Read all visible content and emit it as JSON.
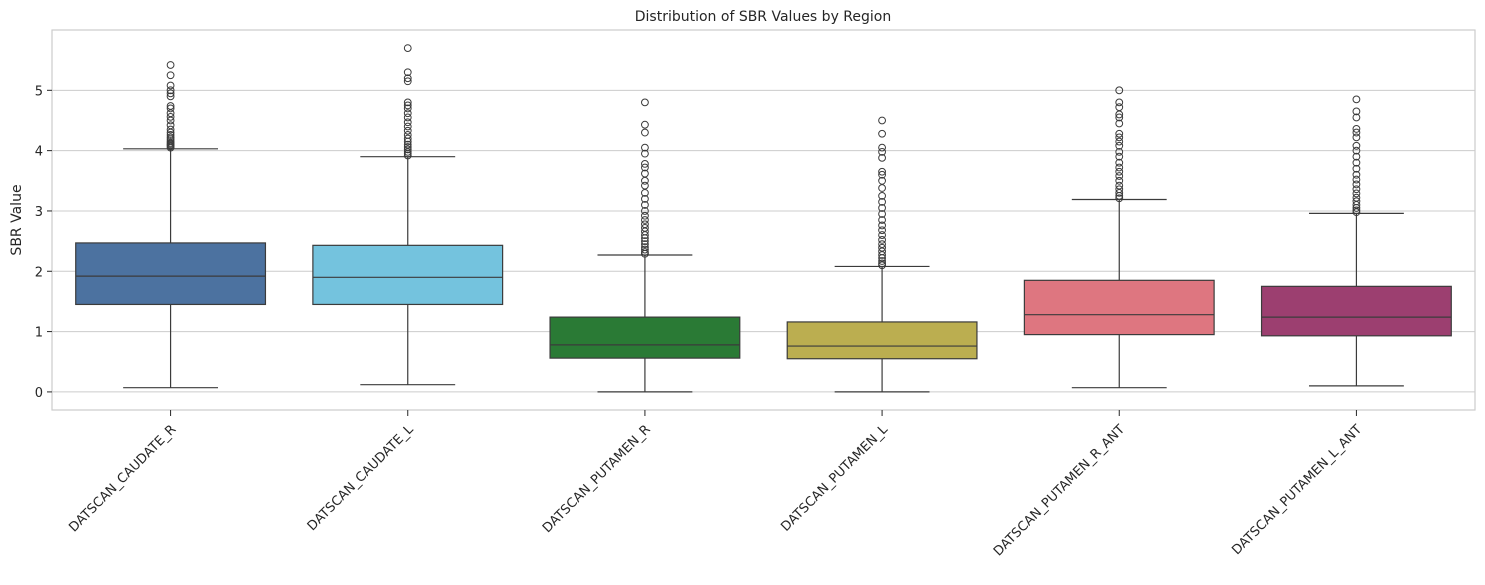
{
  "chart_data": {
    "type": "box",
    "title": "Distribution of SBR Values by Region",
    "xlabel": "",
    "ylabel": "SBR Value",
    "ylim": [
      -0.3,
      6.0
    ],
    "yticks": [
      0,
      1,
      2,
      3,
      4,
      5
    ],
    "ytick_labels": [
      "0",
      "1",
      "2",
      "3",
      "4",
      "5"
    ],
    "grid": "horizontal",
    "categories": [
      "DATSCAN_CAUDATE_R",
      "DATSCAN_CAUDATE_L",
      "DATSCAN_PUTAMEN_R",
      "DATSCAN_PUTAMEN_L",
      "DATSCAN_PUTAMEN_R_ANT",
      "DATSCAN_PUTAMEN_L_ANT"
    ],
    "boxes": [
      {
        "whislo": 0.07,
        "q1": 1.45,
        "med": 1.92,
        "q3": 2.47,
        "whishi": 4.03,
        "color": "#4C72A0",
        "fliers": [
          4.05,
          4.07,
          4.09,
          4.11,
          4.13,
          4.16,
          4.19,
          4.22,
          4.26,
          4.3,
          4.35,
          4.42,
          4.5,
          4.56,
          4.62,
          4.7,
          4.74,
          4.9,
          4.95,
          5.0,
          5.08,
          5.25,
          5.42
        ]
      },
      {
        "whislo": 0.12,
        "q1": 1.45,
        "med": 1.9,
        "q3": 2.43,
        "whishi": 3.9,
        "color": "#74C3DE",
        "fliers": [
          3.92,
          3.95,
          3.98,
          4.02,
          4.06,
          4.1,
          4.15,
          4.2,
          4.26,
          4.33,
          4.4,
          4.47,
          4.55,
          4.62,
          4.7,
          4.75,
          4.8,
          5.15,
          5.2,
          5.3,
          5.7
        ]
      },
      {
        "whislo": 0.0,
        "q1": 0.56,
        "med": 0.78,
        "q3": 1.24,
        "whishi": 2.27,
        "color": "#2A7A35",
        "fliers": [
          2.29,
          2.32,
          2.36,
          2.4,
          2.45,
          2.5,
          2.55,
          2.6,
          2.66,
          2.72,
          2.78,
          2.85,
          2.92,
          3.0,
          3.1,
          3.2,
          3.3,
          3.42,
          3.5,
          3.62,
          3.72,
          3.78,
          3.95,
          4.05,
          4.3,
          4.43,
          4.8
        ]
      },
      {
        "whislo": 0.0,
        "q1": 0.55,
        "med": 0.76,
        "q3": 1.16,
        "whishi": 2.08,
        "color": "#BBAE50",
        "fliers": [
          2.1,
          2.13,
          2.17,
          2.22,
          2.27,
          2.33,
          2.39,
          2.45,
          2.52,
          2.6,
          2.68,
          2.76,
          2.85,
          2.95,
          3.05,
          3.15,
          3.25,
          3.38,
          3.5,
          3.6,
          3.65,
          3.88,
          3.98,
          4.05,
          4.28,
          4.5
        ]
      },
      {
        "whislo": 0.07,
        "q1": 0.95,
        "med": 1.28,
        "q3": 1.85,
        "whishi": 3.19,
        "color": "#DE7680",
        "fliers": [
          3.21,
          3.25,
          3.3,
          3.36,
          3.42,
          3.5,
          3.58,
          3.65,
          3.72,
          3.8,
          3.9,
          3.98,
          4.08,
          4.15,
          4.22,
          4.28,
          4.45,
          4.55,
          4.6,
          4.72,
          4.8,
          5.0
        ]
      },
      {
        "whislo": 0.1,
        "q1": 0.93,
        "med": 1.24,
        "q3": 1.75,
        "whishi": 2.96,
        "color": "#9C3F70",
        "fliers": [
          2.98,
          3.01,
          3.05,
          3.1,
          3.16,
          3.22,
          3.29,
          3.36,
          3.44,
          3.52,
          3.6,
          3.7,
          3.8,
          3.9,
          4.0,
          4.08,
          4.22,
          4.3,
          4.36,
          4.55,
          4.65,
          4.85
        ]
      }
    ]
  }
}
